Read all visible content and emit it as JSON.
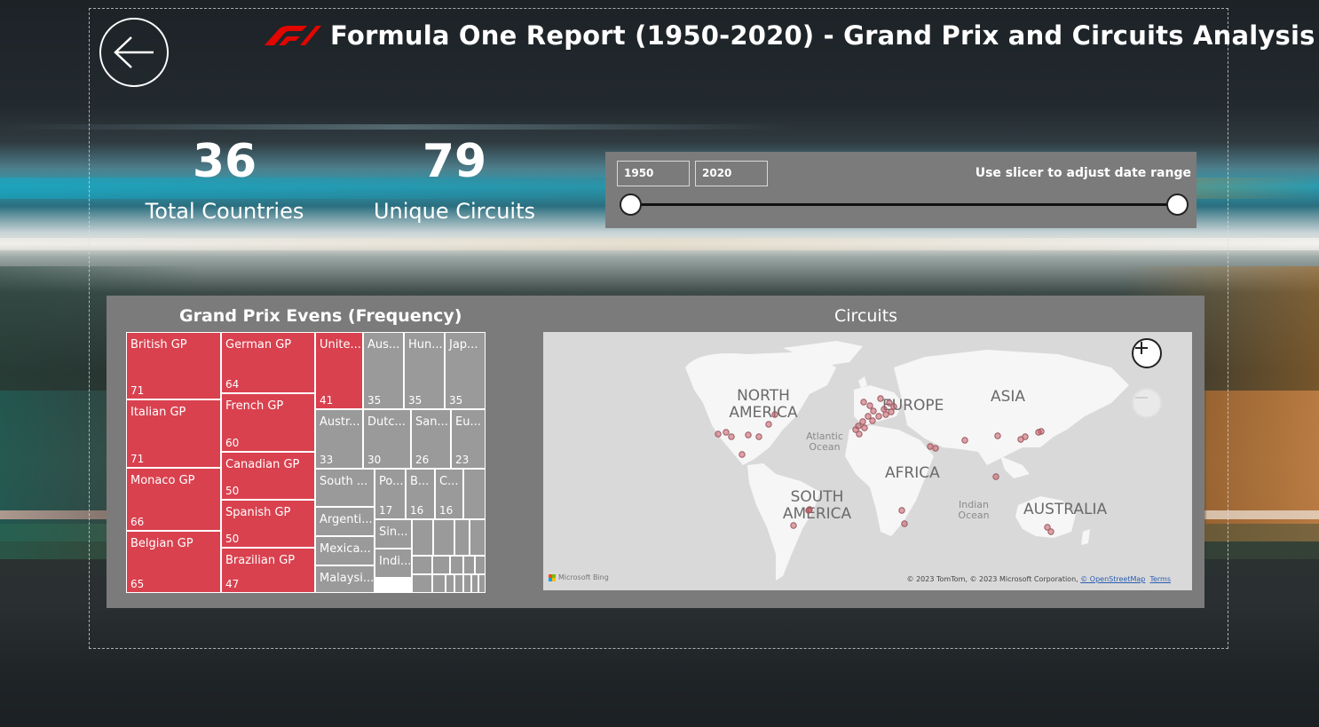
{
  "header": {
    "title": "Formula One Report (1950-2020) - Grand Prix and Circuits Analysis",
    "logo_icon": "f1-logo",
    "back_icon": "arrow-left-icon"
  },
  "kpis": {
    "countries": {
      "value": "36",
      "label": "Total Countries"
    },
    "circuits": {
      "value": "79",
      "label": "Unique Circuits"
    }
  },
  "slicer": {
    "start": "1950",
    "end": "2020",
    "hint": "Use slicer to adjust date range"
  },
  "treemap": {
    "title": "Grand Prix Evens (Frequency)",
    "colors": {
      "highlight": "#d9414f",
      "other": "#9a9a9a"
    },
    "cells": [
      {
        "label": "British GP",
        "value": "71"
      },
      {
        "label": "Italian GP",
        "value": "71"
      },
      {
        "label": "Monaco GP",
        "value": "66"
      },
      {
        "label": "Belgian GP",
        "value": "65"
      },
      {
        "label": "German GP",
        "value": "64"
      },
      {
        "label": "French GP",
        "value": "60"
      },
      {
        "label": "Canadian GP",
        "value": "50"
      },
      {
        "label": "Spanish GP",
        "value": "50"
      },
      {
        "label": "Brazilian GP",
        "value": "47"
      },
      {
        "label": "Unite...",
        "value": "41"
      },
      {
        "label": "Aus...",
        "value": "35"
      },
      {
        "label": "Hun...",
        "value": "35"
      },
      {
        "label": "Jap...",
        "value": "35"
      },
      {
        "label": "Austr...",
        "value": "33"
      },
      {
        "label": "Dutc...",
        "value": "30"
      },
      {
        "label": "San...",
        "value": "26"
      },
      {
        "label": "Eu...",
        "value": "23"
      },
      {
        "label": "South ...",
        "value": ""
      },
      {
        "label": "Po...",
        "value": "17"
      },
      {
        "label": "B...",
        "value": "16"
      },
      {
        "label": "C...",
        "value": "16"
      },
      {
        "label": "Argenti...",
        "value": ""
      },
      {
        "label": "Mexica...",
        "value": ""
      },
      {
        "label": "Malaysi...",
        "value": ""
      },
      {
        "label": "Sin...",
        "value": ""
      },
      {
        "label": "Indi...",
        "value": ""
      }
    ]
  },
  "map": {
    "title": "Circuits",
    "labels": {
      "north_america": "NORTH AMERICA",
      "europe": "EUROPE",
      "asia": "ASIA",
      "africa": "AFRICA",
      "south_america": "SOUTH AMERICA",
      "australia": "AUSTRALIA",
      "atlantic": "Atlantic Ocean",
      "indian": "Indian Ocean"
    },
    "attribution": "Microsoft Bing",
    "copyright": "© 2023 TomTom, © 2023 Microsoft Corporation,",
    "osm_link": "© OpenStreetMap",
    "terms_link": "Terms",
    "marker_color": "#d9414f"
  }
}
